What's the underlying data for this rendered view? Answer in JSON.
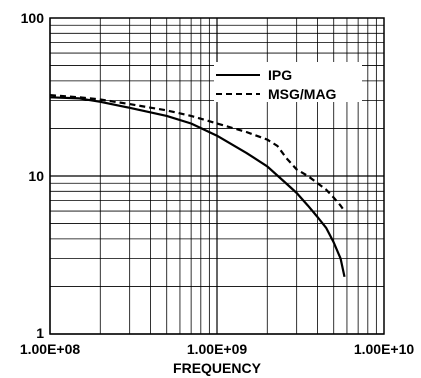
{
  "chart_data": {
    "type": "line",
    "xlabel": "FREQUENCY",
    "ylabel": "",
    "x_scale": "log",
    "y_scale": "log",
    "xlim": [
      100000000,
      10000000000
    ],
    "ylim": [
      1,
      100
    ],
    "grid": true,
    "legend_position": "top-right",
    "x_tick_labels": [
      "1.00E+08",
      "1.00E+09",
      "1.00E+10"
    ],
    "y_tick_labels": [
      "1",
      "10",
      "100"
    ],
    "series": [
      {
        "name": "IPG",
        "style": "solid",
        "color": "#000000",
        "x": [
          100000000,
          150000000,
          200000000,
          300000000,
          500000000,
          700000000,
          1000000000,
          1500000000,
          2000000000,
          2500000000,
          3000000000,
          3500000000,
          4000000000,
          4500000000,
          5000000000,
          5500000000,
          5800000000
        ],
        "y": [
          31.5,
          31,
          29.5,
          27,
          24,
          21.5,
          18,
          14,
          11.5,
          9.3,
          7.8,
          6.5,
          5.5,
          4.7,
          3.8,
          3.0,
          2.3
        ]
      },
      {
        "name": "MSG/MAG",
        "style": "dashed",
        "color": "#000000",
        "x": [
          100000000,
          150000000,
          200000000,
          300000000,
          500000000,
          700000000,
          1000000000,
          1500000000,
          2000000000,
          2300000000,
          2600000000,
          3000000000,
          3500000000,
          4000000000,
          4500000000,
          5000000000,
          5500000000,
          5800000000
        ],
        "y": [
          32.5,
          31.5,
          30.5,
          28.5,
          26,
          24,
          21.5,
          19,
          17,
          15.5,
          13,
          11,
          10,
          9,
          8.2,
          7.3,
          6.5,
          6
        ]
      }
    ]
  }
}
